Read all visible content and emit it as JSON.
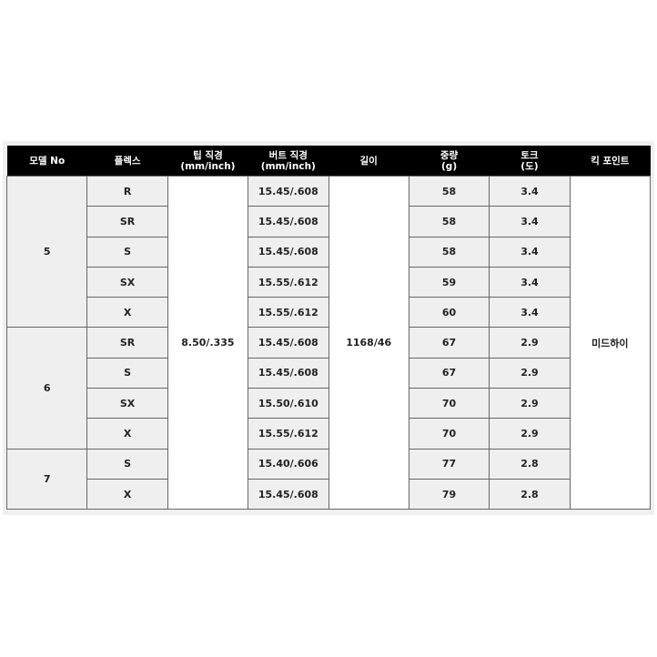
{
  "headers": [
    "모델 No",
    "플렉스",
    "팁 직경\n(mm/inch)",
    "버트 직경\n(mm/inch)",
    "길이",
    "중량\n(g)",
    "토크\n(도)",
    "킥 포인트"
  ],
  "tip_diameter": "8.50/.335",
  "length": "1168/46",
  "kick_point": "미드하이",
  "models": [
    {
      "model": "5",
      "rows": [
        {
          "flex": "R",
          "butt": "15.45/.608",
          "weight": "58",
          "torque": "3.4"
        },
        {
          "flex": "SR",
          "butt": "15.45/.608",
          "weight": "58",
          "torque": "3.4"
        },
        {
          "flex": "S",
          "butt": "15.45/.608",
          "weight": "58",
          "torque": "3.4"
        },
        {
          "flex": "SX",
          "butt": "15.55/.612",
          "weight": "59",
          "torque": "3.4"
        },
        {
          "flex": "X",
          "butt": "15.55/.612",
          "weight": "60",
          "torque": "3.4"
        }
      ]
    },
    {
      "model": "6",
      "rows": [
        {
          "flex": "SR",
          "butt": "15.45/.608",
          "weight": "67",
          "torque": "2.9"
        },
        {
          "flex": "S",
          "butt": "15.45/.608",
          "weight": "67",
          "torque": "2.9"
        },
        {
          "flex": "SX",
          "butt": "15.50/.610",
          "weight": "70",
          "torque": "2.9"
        },
        {
          "flex": "X",
          "butt": "15.55/.612",
          "weight": "70",
          "torque": "2.9"
        }
      ]
    },
    {
      "model": "7",
      "rows": [
        {
          "flex": "S",
          "butt": "15.40/.606",
          "weight": "77",
          "torque": "2.8"
        },
        {
          "flex": "X",
          "butt": "15.45/.608",
          "weight": "79",
          "torque": "2.8"
        }
      ]
    }
  ]
}
